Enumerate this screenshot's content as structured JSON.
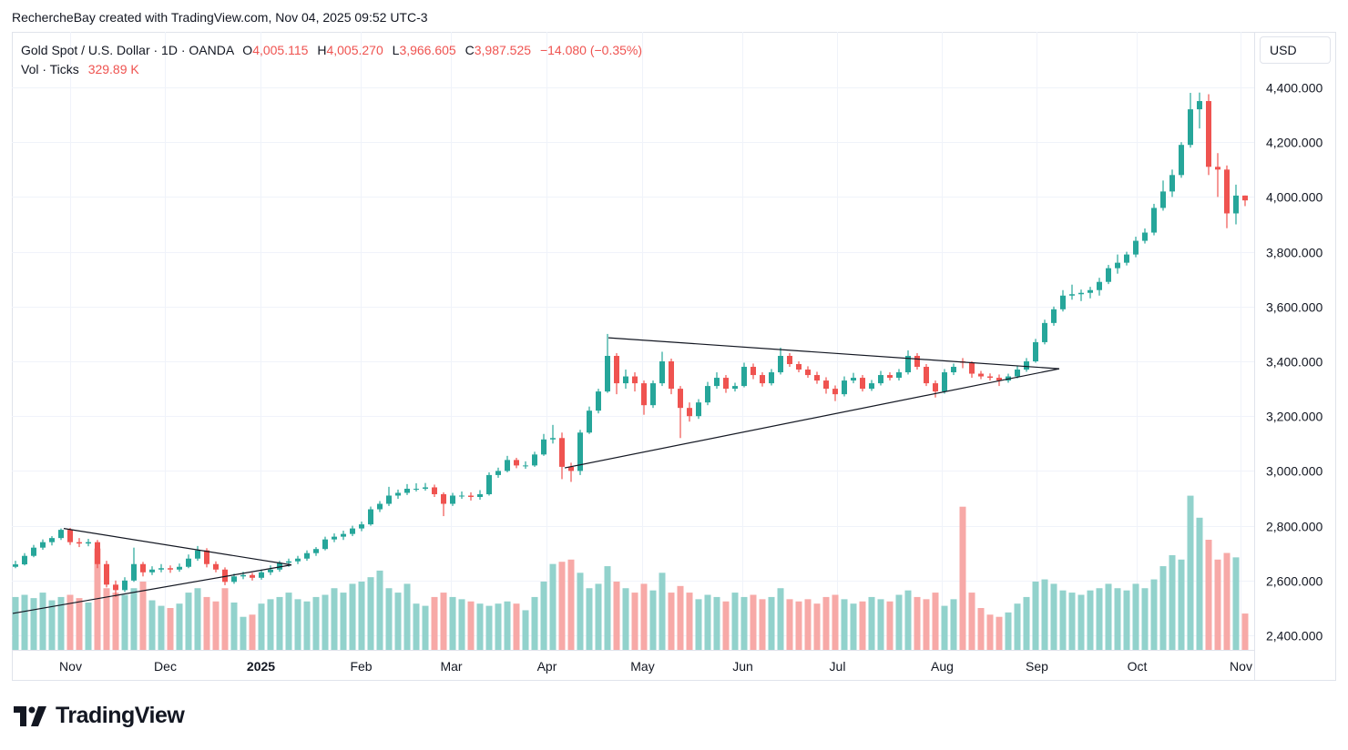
{
  "credit": "RechercheBay created with TradingView.com, Nov 04, 2025 09:52 UTC-3",
  "legend": {
    "symbol": "Gold Spot / U.S. Dollar · 1D · OANDA",
    "o_label": "O",
    "o": "4,005.115",
    "h_label": "H",
    "h": "4,005.270",
    "l_label": "L",
    "l": "3,966.605",
    "c_label": "C",
    "c": "3,987.525",
    "change": "−14.080 (−0.35%)",
    "vol_label": "Vol · Ticks",
    "vol": "329.89 K"
  },
  "currency_button": "USD",
  "footer": {
    "logo_text": "TradingView"
  },
  "colors": {
    "up": "#26a69a",
    "down": "#ef5350",
    "vol_up": "#92d2cc",
    "vol_down": "#f7a9a7",
    "grid": "#f0f3fa",
    "trendline": "#131722"
  },
  "chart_data": {
    "type": "candlestick",
    "title": "Gold Spot / U.S. Dollar · 1D · OANDA",
    "ylim": [
      2340,
      4600
    ],
    "y_ticks": [
      "4,400.000",
      "4,200.000",
      "4,000.000",
      "3,800.000",
      "3,600.000",
      "3,400.000",
      "3,200.000",
      "3,000.000",
      "2,800.000",
      "2,600.000",
      "2,400.000"
    ],
    "y_tick_values": [
      4400,
      4200,
      4000,
      3800,
      3600,
      3400,
      3200,
      3000,
      2800,
      2600,
      2400
    ],
    "x_ticks": [
      {
        "label": "Nov",
        "bar": 6
      },
      {
        "label": "Dec",
        "bar": 16.4
      },
      {
        "label": "2025",
        "bar": 26.9,
        "bold": true
      },
      {
        "label": "Feb",
        "bar": 37.9
      },
      {
        "label": "Mar",
        "bar": 47.8
      },
      {
        "label": "Apr",
        "bar": 58.3
      },
      {
        "label": "May",
        "bar": 68.8
      },
      {
        "label": "Jun",
        "bar": 79.8
      },
      {
        "label": "Jul",
        "bar": 90.2
      },
      {
        "label": "Aug",
        "bar": 101.7
      },
      {
        "label": "Sep",
        "bar": 112.1
      },
      {
        "label": "Oct",
        "bar": 123.1
      },
      {
        "label": "Nov",
        "bar": 134.5
      }
    ],
    "grid": true,
    "columns": [
      "open",
      "high",
      "low",
      "close",
      "volume_k"
    ],
    "candles": [
      [
        2650,
        2672,
        2645,
        2659,
        480
      ],
      [
        2659,
        2700,
        2655,
        2690,
        500
      ],
      [
        2690,
        2730,
        2685,
        2720,
        470
      ],
      [
        2720,
        2750,
        2712,
        2740,
        520
      ],
      [
        2740,
        2762,
        2728,
        2755,
        450
      ],
      [
        2755,
        2790,
        2748,
        2785,
        480
      ],
      [
        2785,
        2792,
        2730,
        2740,
        500
      ],
      [
        2740,
        2755,
        2722,
        2735,
        470
      ],
      [
        2735,
        2752,
        2725,
        2740,
        430
      ],
      [
        2740,
        2748,
        2645,
        2660,
        920
      ],
      [
        2660,
        2672,
        2575,
        2585,
        560
      ],
      [
        2585,
        2600,
        2540,
        2565,
        520
      ],
      [
        2565,
        2612,
        2558,
        2600,
        500
      ],
      [
        2600,
        2720,
        2595,
        2660,
        560
      ],
      [
        2660,
        2668,
        2615,
        2630,
        620
      ],
      [
        2630,
        2652,
        2620,
        2640,
        450
      ],
      [
        2640,
        2660,
        2630,
        2645,
        400
      ],
      [
        2645,
        2655,
        2628,
        2640,
        380
      ],
      [
        2640,
        2662,
        2632,
        2650,
        420
      ],
      [
        2650,
        2695,
        2645,
        2680,
        520
      ],
      [
        2680,
        2726,
        2672,
        2710,
        560
      ],
      [
        2710,
        2718,
        2648,
        2660,
        480
      ],
      [
        2660,
        2670,
        2630,
        2640,
        440
      ],
      [
        2640,
        2648,
        2583,
        2595,
        560
      ],
      [
        2595,
        2625,
        2588,
        2615,
        430
      ],
      [
        2615,
        2632,
        2605,
        2620,
        300
      ],
      [
        2620,
        2628,
        2600,
        2610,
        320
      ],
      [
        2610,
        2640,
        2603,
        2630,
        420
      ],
      [
        2630,
        2655,
        2620,
        2640,
        460
      ],
      [
        2640,
        2672,
        2632,
        2665,
        480
      ],
      [
        2665,
        2680,
        2650,
        2670,
        520
      ],
      [
        2670,
        2690,
        2660,
        2680,
        460
      ],
      [
        2680,
        2710,
        2672,
        2700,
        440
      ],
      [
        2700,
        2722,
        2690,
        2715,
        480
      ],
      [
        2715,
        2760,
        2710,
        2750,
        500
      ],
      [
        2750,
        2772,
        2740,
        2760,
        560
      ],
      [
        2760,
        2782,
        2748,
        2770,
        520
      ],
      [
        2770,
        2800,
        2762,
        2790,
        600
      ],
      [
        2790,
        2815,
        2780,
        2805,
        620
      ],
      [
        2805,
        2870,
        2800,
        2860,
        660
      ],
      [
        2860,
        2890,
        2850,
        2880,
        720
      ],
      [
        2880,
        2942,
        2872,
        2910,
        560
      ],
      [
        2910,
        2932,
        2898,
        2920,
        520
      ],
      [
        2920,
        2952,
        2912,
        2935,
        600
      ],
      [
        2935,
        2955,
        2925,
        2935,
        420
      ],
      [
        2935,
        2956,
        2928,
        2940,
        400
      ],
      [
        2940,
        2950,
        2905,
        2915,
        480
      ],
      [
        2915,
        2922,
        2835,
        2880,
        520
      ],
      [
        2880,
        2920,
        2872,
        2910,
        480
      ],
      [
        2910,
        2925,
        2898,
        2910,
        460
      ],
      [
        2910,
        2922,
        2892,
        2905,
        440
      ],
      [
        2905,
        2930,
        2895,
        2915,
        420
      ],
      [
        2915,
        2995,
        2910,
        2985,
        400
      ],
      [
        2985,
        3012,
        2975,
        3000,
        420
      ],
      [
        3000,
        3055,
        2995,
        3040,
        440
      ],
      [
        3040,
        3048,
        3010,
        3020,
        420
      ],
      [
        3020,
        3035,
        3008,
        3020,
        360
      ],
      [
        3020,
        3070,
        3015,
        3060,
        480
      ],
      [
        3060,
        3135,
        3055,
        3115,
        620
      ],
      [
        3115,
        3168,
        3100,
        3120,
        780
      ],
      [
        3120,
        3140,
        2970,
        3015,
        800
      ],
      [
        3015,
        3030,
        2960,
        3000,
        820
      ],
      [
        3000,
        3150,
        2985,
        3140,
        700
      ],
      [
        3140,
        3235,
        3135,
        3220,
        560
      ],
      [
        3220,
        3300,
        3210,
        3290,
        600
      ],
      [
        3290,
        3500,
        3285,
        3420,
        760
      ],
      [
        3420,
        3430,
        3280,
        3320,
        620
      ],
      [
        3320,
        3370,
        3300,
        3345,
        560
      ],
      [
        3345,
        3360,
        3290,
        3320,
        520
      ],
      [
        3320,
        3330,
        3205,
        3240,
        600
      ],
      [
        3240,
        3330,
        3230,
        3320,
        540
      ],
      [
        3320,
        3435,
        3310,
        3400,
        700
      ],
      [
        3400,
        3410,
        3280,
        3300,
        520
      ],
      [
        3300,
        3310,
        3120,
        3230,
        580
      ],
      [
        3230,
        3250,
        3180,
        3200,
        520
      ],
      [
        3200,
        3262,
        3190,
        3250,
        460
      ],
      [
        3250,
        3325,
        3240,
        3310,
        500
      ],
      [
        3310,
        3360,
        3300,
        3340,
        480
      ],
      [
        3340,
        3350,
        3285,
        3300,
        440
      ],
      [
        3300,
        3322,
        3290,
        3310,
        520
      ],
      [
        3310,
        3395,
        3305,
        3380,
        480
      ],
      [
        3380,
        3392,
        3335,
        3350,
        500
      ],
      [
        3350,
        3360,
        3308,
        3320,
        460
      ],
      [
        3320,
        3372,
        3312,
        3360,
        480
      ],
      [
        3360,
        3450,
        3352,
        3420,
        560
      ],
      [
        3420,
        3430,
        3380,
        3390,
        460
      ],
      [
        3390,
        3400,
        3360,
        3370,
        440
      ],
      [
        3370,
        3382,
        3340,
        3350,
        460
      ],
      [
        3350,
        3362,
        3318,
        3330,
        420
      ],
      [
        3330,
        3342,
        3282,
        3300,
        480
      ],
      [
        3300,
        3312,
        3255,
        3280,
        500
      ],
      [
        3280,
        3345,
        3272,
        3330,
        460
      ],
      [
        3330,
        3358,
        3320,
        3340,
        420
      ],
      [
        3340,
        3350,
        3290,
        3300,
        440
      ],
      [
        3300,
        3332,
        3292,
        3320,
        480
      ],
      [
        3320,
        3365,
        3312,
        3350,
        460
      ],
      [
        3350,
        3360,
        3330,
        3340,
        440
      ],
      [
        3340,
        3372,
        3330,
        3360,
        500
      ],
      [
        3360,
        3440,
        3352,
        3420,
        540
      ],
      [
        3420,
        3430,
        3370,
        3380,
        480
      ],
      [
        3380,
        3390,
        3310,
        3320,
        460
      ],
      [
        3320,
        3330,
        3268,
        3290,
        520
      ],
      [
        3290,
        3372,
        3282,
        3360,
        400
      ],
      [
        3360,
        3392,
        3350,
        3380,
        460
      ],
      [
        3400,
        3412,
        3375,
        3395,
        1300
      ],
      [
        3395,
        3400,
        3340,
        3355,
        520
      ],
      [
        3355,
        3365,
        3335,
        3345,
        380
      ],
      [
        3345,
        3356,
        3330,
        3340,
        320
      ],
      [
        3340,
        3352,
        3310,
        3330,
        300
      ],
      [
        3330,
        3355,
        3322,
        3345,
        340
      ],
      [
        3345,
        3382,
        3338,
        3370,
        420
      ],
      [
        3370,
        3412,
        3362,
        3400,
        480
      ],
      [
        3400,
        3482,
        3395,
        3470,
        620
      ],
      [
        3470,
        3552,
        3462,
        3540,
        640
      ],
      [
        3540,
        3600,
        3530,
        3590,
        600
      ],
      [
        3590,
        3660,
        3582,
        3640,
        540
      ],
      [
        3640,
        3680,
        3625,
        3645,
        520
      ],
      [
        3645,
        3662,
        3620,
        3650,
        500
      ],
      [
        3650,
        3672,
        3630,
        3660,
        540
      ],
      [
        3660,
        3705,
        3640,
        3690,
        560
      ],
      [
        3690,
        3752,
        3682,
        3740,
        600
      ],
      [
        3740,
        3790,
        3720,
        3760,
        560
      ],
      [
        3760,
        3800,
        3750,
        3790,
        540
      ],
      [
        3790,
        3855,
        3780,
        3840,
        600
      ],
      [
        3840,
        3885,
        3830,
        3870,
        560
      ],
      [
        3870,
        3975,
        3860,
        3960,
        640
      ],
      [
        3960,
        4060,
        3950,
        4020,
        760
      ],
      [
        4020,
        4100,
        4000,
        4080,
        860
      ],
      [
        4080,
        4200,
        4070,
        4190,
        820
      ],
      [
        4190,
        4380,
        4180,
        4320,
        1400
      ],
      [
        4320,
        4381,
        4250,
        4350,
        1200
      ],
      [
        4350,
        4375,
        4080,
        4110,
        1000
      ],
      [
        4110,
        4160,
        4000,
        4100,
        820
      ],
      [
        4100,
        4115,
        3886,
        3940,
        880
      ],
      [
        3940,
        4045,
        3900,
        4005,
        840
      ],
      [
        4005.115,
        4005.27,
        3966.605,
        3987.525,
        329.89
      ]
    ],
    "trendlines": [
      {
        "from": [
          5.3,
          2790
        ],
        "to": [
          30.3,
          2657
        ]
      },
      {
        "from": [
          -0.3,
          2480
        ],
        "to": [
          30.3,
          2657
        ]
      },
      {
        "from": [
          65.1,
          3486
        ],
        "to": [
          114.6,
          3373
        ]
      },
      {
        "from": [
          60.3,
          3011
        ],
        "to": [
          114.6,
          3373
        ]
      }
    ]
  }
}
